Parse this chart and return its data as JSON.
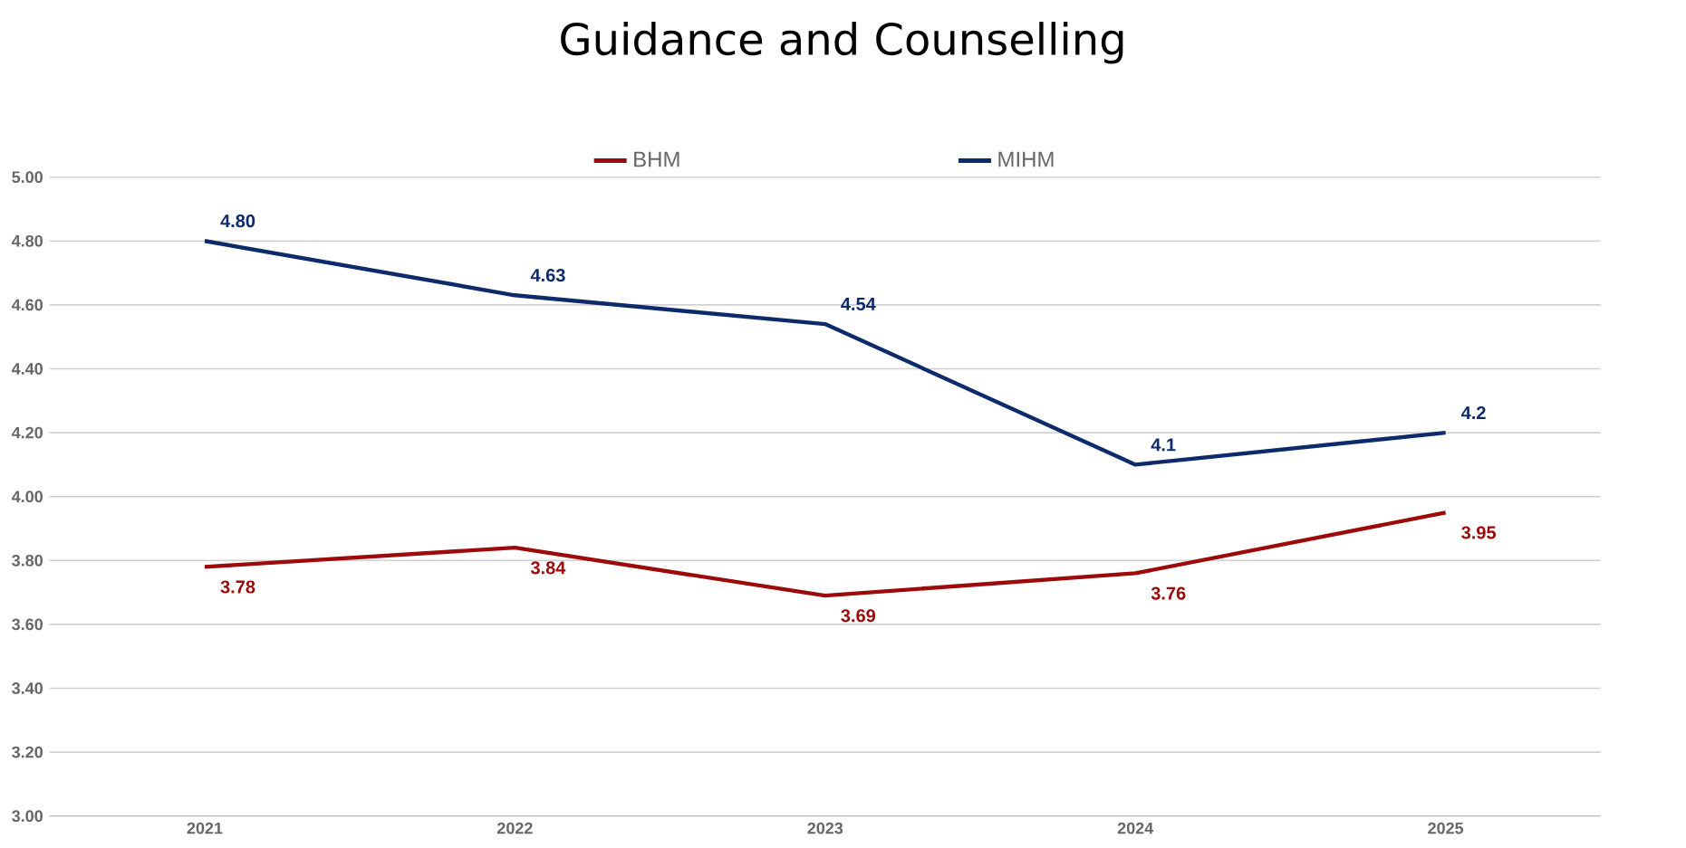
{
  "chart_data": {
    "type": "line",
    "title": "Guidance and Counselling",
    "categories": [
      "2021",
      "2022",
      "2023",
      "2024",
      "2025"
    ],
    "series": [
      {
        "name": "BHM",
        "color": "#9c0a0a",
        "values": [
          3.78,
          3.84,
          3.69,
          3.76,
          3.95
        ],
        "value_labels": [
          "3.78",
          "3.84",
          "3.69",
          "3.76",
          "3.95"
        ]
      },
      {
        "name": "MIHM",
        "color": "#0d2a6b",
        "values": [
          4.8,
          4.63,
          4.54,
          4.1,
          4.2
        ],
        "value_labels": [
          "4.80",
          "4.63",
          "4.54",
          "4.1",
          "4.2"
        ]
      }
    ],
    "ylim": [
      3,
      5
    ],
    "yticks": [
      {
        "value": 3,
        "label": "3.00"
      },
      {
        "value": 3.2,
        "label": "3.20"
      },
      {
        "value": 3.4,
        "label": "3.40"
      },
      {
        "value": 3.6,
        "label": "3.60"
      },
      {
        "value": 3.8,
        "label": "3.80"
      },
      {
        "value": 4,
        "label": "4.00"
      },
      {
        "value": 4.2,
        "label": "4.20"
      },
      {
        "value": 4.4,
        "label": "4.40"
      },
      {
        "value": 4.6,
        "label": "4.60"
      },
      {
        "value": 4.8,
        "label": "4.80"
      },
      {
        "value": 5,
        "label": "5.00"
      }
    ],
    "grid": "y",
    "legend": "top",
    "marker": "none",
    "line_style": "solid"
  }
}
